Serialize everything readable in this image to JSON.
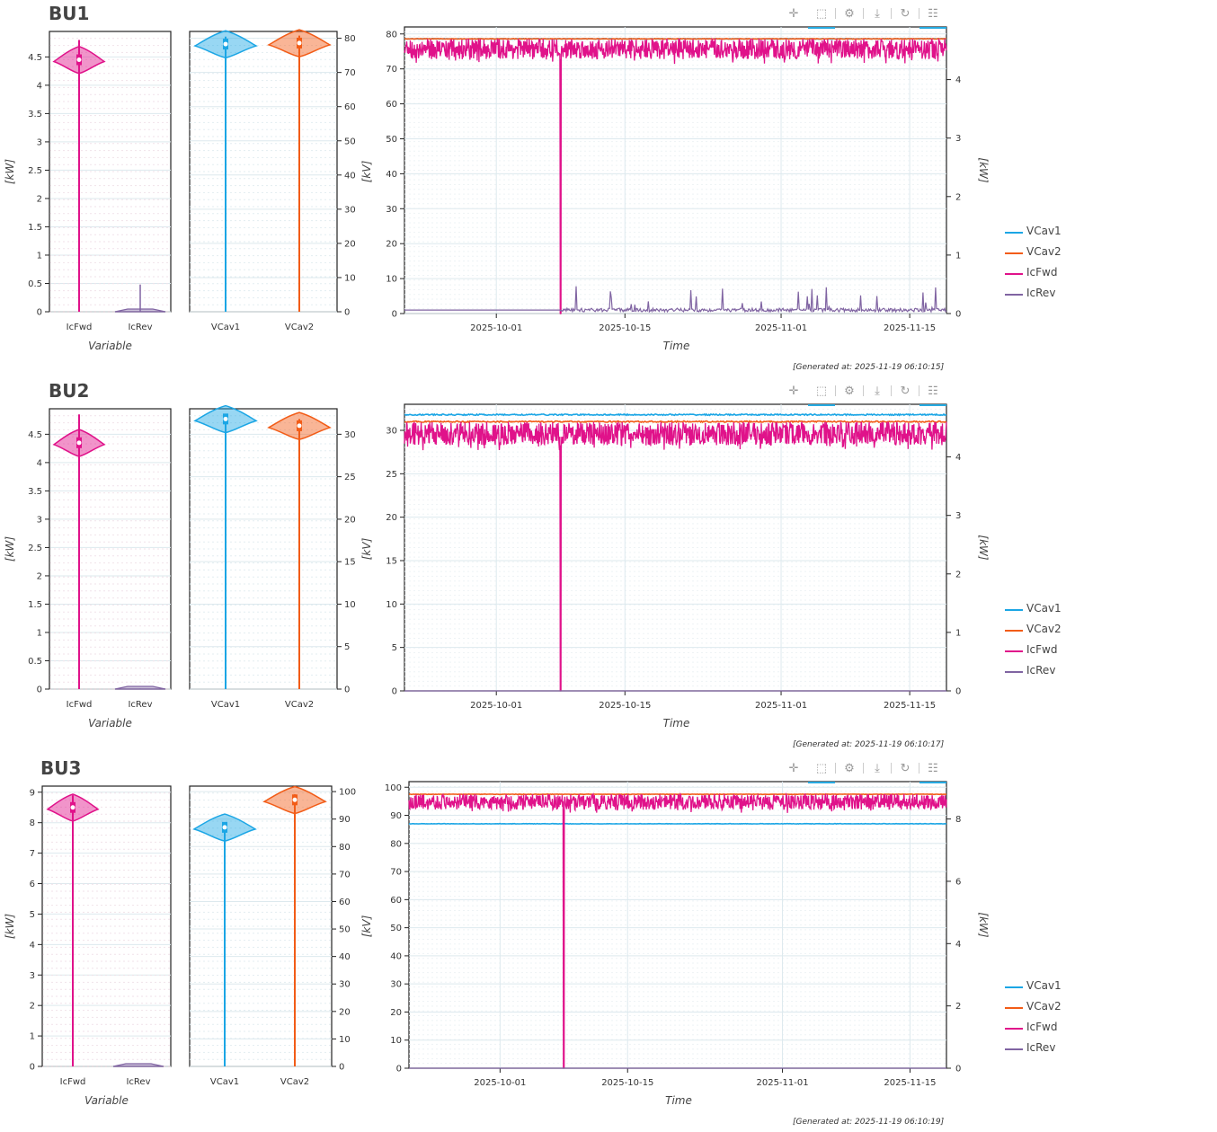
{
  "colors": {
    "VCav1": "#1ba6e5",
    "VCav2": "#f25c17",
    "IcFwd": "#e0128a",
    "IcRev": "#8064a2"
  },
  "toolbar_icons": [
    "pan-icon",
    "box-zoom-icon",
    "wheel-zoom-icon",
    "save-icon",
    "reset-icon",
    "hover-icon"
  ],
  "legend_labels": [
    "VCav1",
    "VCav2",
    "IcFwd",
    "IcRev"
  ],
  "panels": [
    {
      "title": "BU1",
      "generated": "[Generated at: 2025-11-19 06:10:15]",
      "violin_left": {
        "ylabel": "[kW]",
        "xlabel": "Variable",
        "categories": [
          "IcFwd",
          "IcRev"
        ],
        "ticks": [
          "0",
          "0.5",
          "1",
          "1.5",
          "2",
          "2.5",
          "3",
          "3.5",
          "4",
          "4.5"
        ]
      },
      "violin_right": {
        "ylabel": "[kV]",
        "categories": [
          "VCav1",
          "VCav2"
        ],
        "ticks": [
          "0",
          "10",
          "20",
          "30",
          "40",
          "50",
          "60",
          "70",
          "80"
        ]
      },
      "timeseries": {
        "ylabel_left": "[kV]",
        "ylabel_right": "[kW]",
        "xlabel": "Time",
        "left_ticks": [
          "0",
          "10",
          "20",
          "30",
          "40",
          "50",
          "60",
          "70",
          "80"
        ],
        "right_ticks": [
          "0",
          "1",
          "2",
          "3",
          "4"
        ],
        "x_ticks": [
          "2025-10-01",
          "2025-10-15",
          "2025-11-01",
          "2025-11-15"
        ]
      }
    },
    {
      "title": "BU2",
      "generated": "[Generated at: 2025-11-19 06:10:17]",
      "violin_left": {
        "ylabel": "[kW]",
        "xlabel": "Variable",
        "categories": [
          "IcFwd",
          "IcRev"
        ],
        "ticks": [
          "0",
          "0.5",
          "1",
          "1.5",
          "2",
          "2.5",
          "3",
          "3.5",
          "4",
          "4.5"
        ]
      },
      "violin_right": {
        "ylabel": "[kV]",
        "categories": [
          "VCav1",
          "VCav2"
        ],
        "ticks": [
          "0",
          "5",
          "10",
          "15",
          "20",
          "25",
          "30"
        ]
      },
      "timeseries": {
        "ylabel_left": "[kV]",
        "ylabel_right": "[kW]",
        "xlabel": "Time",
        "left_ticks": [
          "0",
          "5",
          "10",
          "15",
          "20",
          "25",
          "30"
        ],
        "right_ticks": [
          "0",
          "1",
          "2",
          "3",
          "4"
        ],
        "x_ticks": [
          "2025-10-01",
          "2025-10-15",
          "2025-11-01",
          "2025-11-15"
        ]
      }
    },
    {
      "title": "BU3",
      "generated": "[Generated at: 2025-11-19 06:10:19]",
      "violin_left": {
        "ylabel": "[kW]",
        "xlabel": "Variable",
        "categories": [
          "IcFwd",
          "IcRev"
        ],
        "ticks": [
          "0",
          "1",
          "2",
          "3",
          "4",
          "5",
          "6",
          "7",
          "8",
          "9"
        ]
      },
      "violin_right": {
        "ylabel": "[kV]",
        "categories": [
          "VCav1",
          "VCav2"
        ],
        "ticks": [
          "0",
          "10",
          "20",
          "30",
          "40",
          "50",
          "60",
          "70",
          "80",
          "90",
          "100"
        ]
      },
      "timeseries": {
        "ylabel_left": "[kV]",
        "ylabel_right": "[kW]",
        "xlabel": "Time",
        "left_ticks": [
          "0",
          "10",
          "20",
          "30",
          "40",
          "50",
          "60",
          "70",
          "80",
          "90",
          "100"
        ],
        "right_ticks": [
          "0",
          "2",
          "4",
          "6",
          "8"
        ],
        "x_ticks": [
          "2025-10-01",
          "2025-10-15",
          "2025-11-01",
          "2025-11-15"
        ]
      }
    }
  ],
  "chart_data": [
    {
      "panel": "BU1",
      "type": "line",
      "x_range": [
        "2025-09-21",
        "2025-11-19"
      ],
      "left_axis": {
        "label": "[kV]",
        "ylim": [
          0,
          82
        ]
      },
      "right_axis": {
        "label": "[kW]",
        "ylim": [
          0,
          4.9
        ]
      },
      "series": [
        {
          "name": "VCav1",
          "axis": "left",
          "level": 78.6
        },
        {
          "name": "VCav2",
          "axis": "left",
          "level": 78.6
        },
        {
          "name": "IcFwd",
          "axis": "right",
          "level": 4.45,
          "band": [
            4.35,
            4.7
          ],
          "dropout": "2025-10-08"
        },
        {
          "name": "IcRev",
          "axis": "right",
          "level": 0.06,
          "band": [
            0,
            0.5
          ]
        }
      ],
      "violins": {
        "IcFwd": {
          "median": 4.45,
          "range": [
            0,
            4.8
          ]
        },
        "IcRev": {
          "median": 0.05,
          "range": [
            0,
            0.48
          ]
        },
        "VCav1": {
          "median": 78.3,
          "range": [
            0,
            80.5
          ]
        },
        "VCav2": {
          "median": 78.6,
          "range": [
            0,
            80.8
          ]
        }
      }
    },
    {
      "panel": "BU2",
      "type": "line",
      "x_range": [
        "2025-09-21",
        "2025-11-19"
      ],
      "left_axis": {
        "label": "[kV]",
        "ylim": [
          0,
          33
        ]
      },
      "right_axis": {
        "label": "[kW]",
        "ylim": [
          0,
          4.9
        ]
      },
      "series": [
        {
          "name": "VCav1",
          "axis": "left",
          "level": 31.8
        },
        {
          "name": "VCav2",
          "axis": "left",
          "level": 31.0
        },
        {
          "name": "IcFwd",
          "axis": "right",
          "level": 4.35,
          "band": [
            4.2,
            4.6
          ],
          "dropout": "2025-10-08"
        },
        {
          "name": "IcRev",
          "axis": "right",
          "level": 0.0
        }
      ],
      "violins": {
        "IcFwd": {
          "median": 4.35,
          "range": [
            0,
            4.85
          ]
        },
        "IcRev": {
          "median": 0.0,
          "range": [
            0,
            0.01
          ]
        },
        "VCav1": {
          "median": 31.8,
          "range": [
            0,
            32.3
          ]
        },
        "VCav2": {
          "median": 31.0,
          "range": [
            0,
            31.8
          ]
        }
      }
    },
    {
      "panel": "BU3",
      "type": "line",
      "x_range": [
        "2025-09-21",
        "2025-11-19"
      ],
      "left_axis": {
        "label": "[kV]",
        "ylim": [
          0,
          102
        ]
      },
      "right_axis": {
        "label": "[kW]",
        "ylim": [
          0,
          9.2
        ]
      },
      "series": [
        {
          "name": "VCav1",
          "axis": "left",
          "level": 87.0
        },
        {
          "name": "VCav2",
          "axis": "left",
          "level": 97.5
        },
        {
          "name": "IcFwd",
          "axis": "right",
          "level": 8.5,
          "band": [
            8.3,
            8.8
          ],
          "dropout": "2025-10-08"
        },
        {
          "name": "IcRev",
          "axis": "right",
          "level": 0.0
        }
      ],
      "violins": {
        "IcFwd": {
          "median": 8.5,
          "range": [
            0,
            8.9
          ]
        },
        "IcRev": {
          "median": 0.0,
          "range": [
            0,
            0.01
          ]
        },
        "VCav1": {
          "median": 87.0,
          "range": [
            0,
            88.8
          ]
        },
        "VCav2": {
          "median": 97.0,
          "range": [
            0,
            99
          ]
        }
      }
    }
  ]
}
